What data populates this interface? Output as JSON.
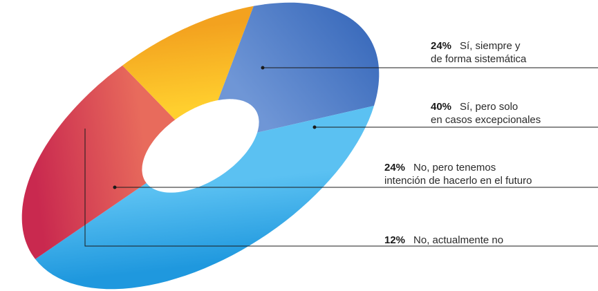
{
  "chart_data": {
    "type": "pie",
    "variant": "donut, tilted 3D",
    "title": "",
    "slices": [
      {
        "value": 24,
        "pct_label": "24%",
        "label_line1": "Sí, siempre y",
        "label_line2": "de forma sistemática",
        "color": "#3d6dbd",
        "color_light": "#6f96d6"
      },
      {
        "value": 40,
        "pct_label": "40%",
        "label_line1": "Sí, pero solo",
        "label_line2": "en casos excepcionales",
        "color": "#1f98de",
        "color_light": "#5bc1f2"
      },
      {
        "value": 24,
        "pct_label": "24%",
        "label_line1": "No, pero tenemos",
        "label_line2": "intención de hacerlo en el futuro",
        "color": "#c9294f",
        "color_light": "#e86b5c"
      },
      {
        "value": 12,
        "pct_label": "12%",
        "label_line1": "No, actualmente no",
        "label_line2": "",
        "color": "#f3a21f",
        "color_light": "#ffcf2e"
      }
    ],
    "legend": "right, with leader lines"
  }
}
